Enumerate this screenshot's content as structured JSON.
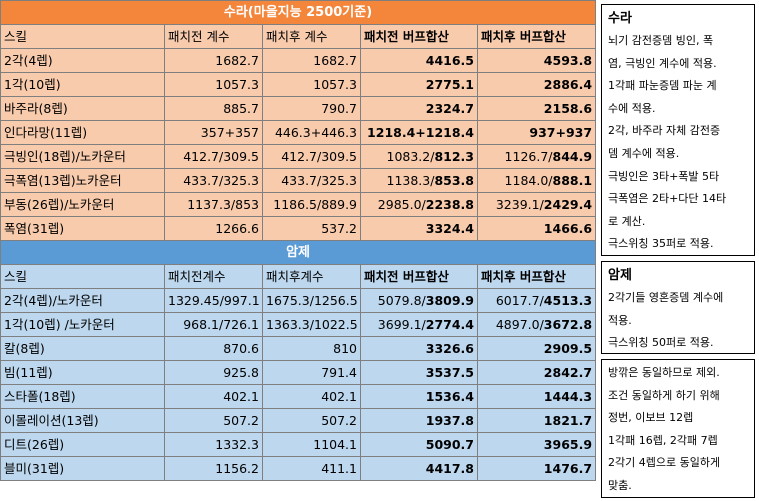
{
  "sura": {
    "title": "수라(마을지능 2500기준)",
    "headers": [
      "스킬",
      "패치전 계수",
      "패치후 계수",
      "패치전 버프합산",
      "패치후 버프합산"
    ],
    "rows": [
      [
        "2각(4렙)",
        "1682.7",
        "1682.7",
        "4416.5",
        "4593.8"
      ],
      [
        "1각(10렙)",
        "1057.3",
        "1057.3",
        "2775.1",
        "2886.4"
      ],
      [
        "바주라(8렙)",
        "885.7",
        "790.7",
        "2324.7",
        "2158.6"
      ],
      [
        "인다라망(11렙)",
        "357+357",
        "446.3+446.3",
        "1218.4+1218.4",
        "937+937"
      ],
      [
        "극빙인(18렙)/노카운터",
        "412.7/309.5",
        "412.7/309.5",
        "1083.2/812.3",
        "1126.7/844.9"
      ],
      [
        "극폭염(13렙)노카운터",
        "433.7/325.3",
        "433.7/325.3",
        "1138.3/853.8",
        "1184.0/888.1"
      ],
      [
        "부동(26렙)/노카운터",
        "1137.3/853",
        "1186.5/889.9",
        "2985.0/2238.8",
        "3239.1/2429.4"
      ],
      [
        "폭염(31렙)",
        "1266.6",
        "537.2",
        "3324.4",
        "1466.6"
      ]
    ]
  },
  "amje": {
    "title": "암제",
    "headers": [
      "스킬",
      "패치전계수",
      "패치후계수",
      "패치전 버프합산",
      "패치후 버프합산"
    ],
    "rows": [
      [
        "2각(4렙)/노카운터",
        "1329.45/997.1",
        "1675.3/1256.5",
        "5079.8/3809.9",
        "6017.7/4513.3"
      ],
      [
        "1각(10렙) /노카운터",
        "968.1/726.1",
        "1363.3/1022.5",
        "3699.1/2774.4",
        "4897.0/3672.8"
      ],
      [
        "칼(8렙)",
        "870.6",
        "810",
        "3326.6",
        "2909.5"
      ],
      [
        "빔(11렙)",
        "925.8",
        "791.4",
        "3537.5",
        "2842.7"
      ],
      [
        "스타폴(18렙)",
        "402.1",
        "402.1",
        "1536.4",
        "1444.3"
      ],
      [
        "이몰레이션(13렙)",
        "507.2",
        "507.2",
        "1937.8",
        "1821.7"
      ],
      [
        "디트(26렙)",
        "1332.3",
        "1104.1",
        "5090.7",
        "3965.9"
      ],
      [
        "블미(31렙)",
        "1156.2",
        "411.1",
        "4417.8",
        "1476.7"
      ]
    ]
  },
  "notes": {
    "sura": {
      "title": "수라",
      "lines": [
        "뇌기 감전증뎀 빙인, 폭",
        "염, 극빙인 계수에 적용.",
        "1각패 파눈증뎀 파눈 계",
        "수에 적용.",
        "2각, 바주라 자체 감전증",
        "뎀 계수에 적용.",
        "극빙인은 3타+폭발 5타",
        "극폭염은 2타+다단 14타",
        "로 계산.",
        "극스위칭 35퍼로 적용."
      ]
    },
    "amje": {
      "title": "암제",
      "lines": [
        "2각기들 영혼증뎀 계수에",
        "적용.",
        "극스위칭 50퍼로 적용."
      ]
    },
    "misc": {
      "lines": [
        "방깎은 동일하므로 제외.",
        "조건 동일하게 하기 위해",
        "정번, 이보브 12렙",
        "1각패 16렙, 2각패 7렙",
        "2각기 4렙으로 동일하게",
        "맞춤."
      ]
    }
  }
}
